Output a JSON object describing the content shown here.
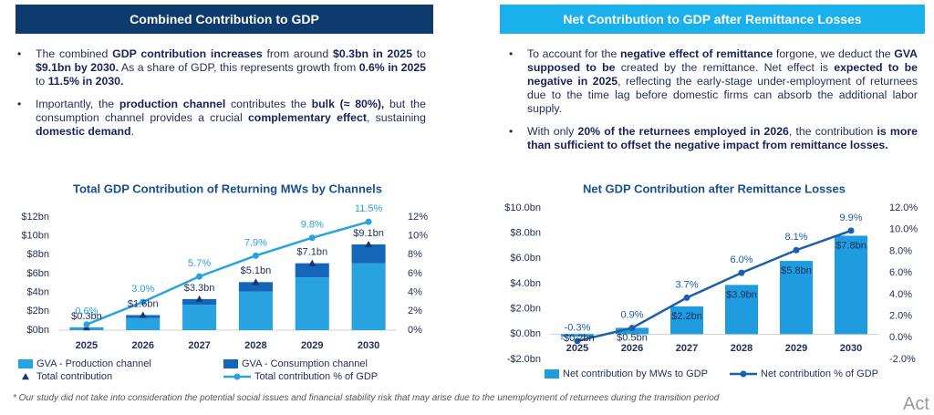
{
  "panels": [
    {
      "header": "Combined Contribution to GDP",
      "bullets": [
        [
          "The combined ",
          "GDP contribution increases",
          " from around ",
          "$0.3bn in 2025",
          " to ",
          "$9.1bn by 2030.",
          " As a share of GDP, this represents growth from ",
          "0.6% in 2025",
          " to ",
          "11.5% in 2030."
        ],
        [
          "Importantly, the ",
          "production channel",
          " contributes the ",
          "bulk (≈ 80%),",
          " but the consumption channel provides a crucial ",
          "complementary effect",
          ", sustaining ",
          "domestic demand",
          "."
        ]
      ]
    },
    {
      "header": "Net Contribution to GDP after Remittance Losses",
      "bullets": [
        [
          "To account for the ",
          "negative effect of remittance",
          " forgone, we deduct the ",
          "GVA supposed to be",
          " created by the remittance. Net effect is ",
          "expected to be negative in 2025",
          ", reflecting the early-stage under-employment of returnees due to the time lag before domestic firms can absorb the additional labor supply."
        ],
        [
          "With only ",
          "20% of the returnees employed in 2026",
          ", the contribution ",
          "is more than sufficient to offset the negative impact from remittance losses."
        ]
      ]
    }
  ],
  "chart_data": [
    {
      "type": "combo",
      "title": "Total GDP Contribution of Returning MWs by Channels",
      "categories": [
        "2025",
        "2026",
        "2027",
        "2028",
        "2029",
        "2030"
      ],
      "series": [
        {
          "name": "GVA - Production channel",
          "kind": "bar",
          "color": "#29a3e0",
          "values": [
            0.25,
            1.3,
            2.7,
            4.1,
            5.6,
            7.1
          ]
        },
        {
          "name": "GVA - Consumption channel",
          "kind": "bar",
          "color": "#1565b8",
          "values": [
            0.05,
            0.3,
            0.6,
            1.0,
            1.5,
            2.0
          ]
        },
        {
          "name": "Total contribution",
          "kind": "marker",
          "color": "#1a3478",
          "values": [
            0.3,
            1.6,
            3.3,
            5.1,
            7.1,
            9.1
          ],
          "value_labels": [
            "$0.3bn",
            "$1.6bn",
            "$3.3bn",
            "$5.1bn",
            "$7.1bn",
            "$9.1bn"
          ]
        },
        {
          "name": "Total contribution % of GDP",
          "kind": "line",
          "axis": "y2",
          "color": "#29a3e0",
          "values": [
            0.6,
            3.0,
            5.7,
            7.9,
            9.8,
            11.5
          ],
          "value_labels": [
            "0.6%",
            "3.0%",
            "5.7%",
            "7.9%",
            "9.8%",
            "11.5%"
          ]
        }
      ],
      "ylim": [
        0,
        12
      ],
      "yticks": [
        {
          "value": 0,
          "label": "$0bn"
        },
        {
          "value": 2,
          "label": "$2bn"
        },
        {
          "value": 4,
          "label": "$4bn"
        },
        {
          "value": 6,
          "label": "$6bn"
        },
        {
          "value": 8,
          "label": "$8bn"
        },
        {
          "value": 10,
          "label": "$10bn"
        },
        {
          "value": 12,
          "label": "$12bn"
        }
      ],
      "y2lim": [
        0,
        12
      ],
      "y2ticks": [
        {
          "value": 0,
          "label": "0%"
        },
        {
          "value": 2,
          "label": "2%"
        },
        {
          "value": 4,
          "label": "4%"
        },
        {
          "value": 6,
          "label": "6%"
        },
        {
          "value": 8,
          "label": "8%"
        },
        {
          "value": 10,
          "label": "10%"
        },
        {
          "value": 12,
          "label": "12%"
        }
      ]
    },
    {
      "type": "combo",
      "title": "Net GDP Contribution after Remittance Losses",
      "categories": [
        "2025",
        "2026",
        "2027",
        "2028",
        "2029",
        "2030"
      ],
      "series": [
        {
          "name": "Net contribution by MWs to GDP",
          "kind": "bar",
          "color": "#1f9be0",
          "values": [
            -0.2,
            0.5,
            2.2,
            3.9,
            5.8,
            7.8
          ],
          "value_labels": [
            "-$0.2bn",
            "$0.5bn",
            "$2.2bn",
            "$3.9bn",
            "$5.8bn",
            "$7.8bn"
          ]
        },
        {
          "name": "Net contribution % of GDP",
          "kind": "line",
          "axis": "y2",
          "color": "#1a5fa8",
          "values": [
            -0.3,
            0.9,
            3.7,
            6.0,
            8.1,
            9.9
          ],
          "value_labels": [
            "-0.3%",
            "0.9%",
            "3.7%",
            "6.0%",
            "8.1%",
            "9.9%"
          ]
        }
      ],
      "ylim": [
        -2,
        10
      ],
      "yticks": [
        {
          "value": -2,
          "label": "-$2.0bn"
        },
        {
          "value": 0,
          "label": "$0.0bn"
        },
        {
          "value": 2,
          "label": "$2.0bn"
        },
        {
          "value": 4,
          "label": "$4.0bn"
        },
        {
          "value": 6,
          "label": "$6.0bn"
        },
        {
          "value": 8,
          "label": "$8.0bn"
        },
        {
          "value": 10,
          "label": "$10.0bn"
        }
      ],
      "y2lim": [
        -2,
        12
      ],
      "y2ticks": [
        {
          "value": -2,
          "label": "-2.0%"
        },
        {
          "value": 0,
          "label": "0.0%"
        },
        {
          "value": 2,
          "label": "2.0%"
        },
        {
          "value": 4,
          "label": "4.0%"
        },
        {
          "value": 6,
          "label": "6.0%"
        },
        {
          "value": 8,
          "label": "8.0%"
        },
        {
          "value": 10,
          "label": "10.0%"
        },
        {
          "value": 12,
          "label": "12.0%"
        }
      ]
    }
  ],
  "footnote": "* Our study did not take into consideration the potential social issues and financial stability risk that may arise due to the unemployment of returnees during the transition period",
  "watermark": "Act"
}
